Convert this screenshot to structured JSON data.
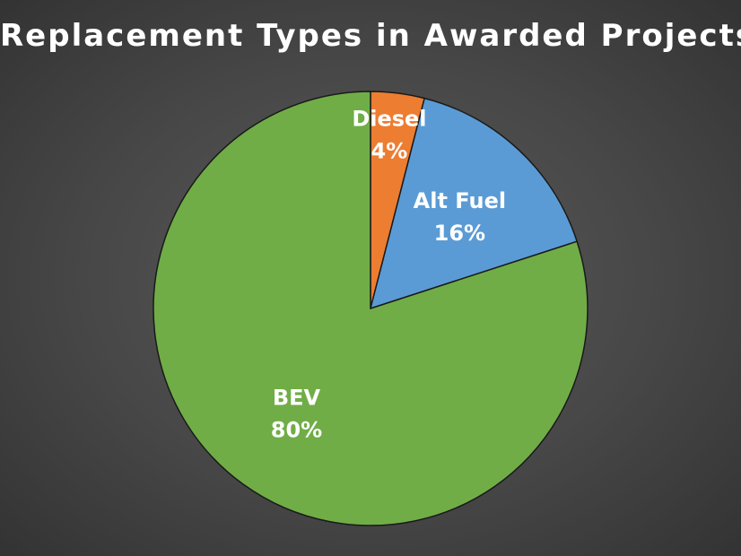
{
  "chart_data": {
    "type": "pie",
    "title": "Replacement Types in Awarded Projects",
    "slices": [
      {
        "label": "Diesel",
        "value": 4,
        "value_label": "4%",
        "color": "#ED7D31"
      },
      {
        "label": "Alt Fuel",
        "value": 16,
        "value_label": "16%",
        "color": "#5B9BD5"
      },
      {
        "label": "BEV",
        "value": 80,
        "value_label": "80%",
        "color": "#70AD47"
      }
    ],
    "start_angle": "12 o'clock",
    "direction": "clockwise",
    "legend": "none"
  }
}
